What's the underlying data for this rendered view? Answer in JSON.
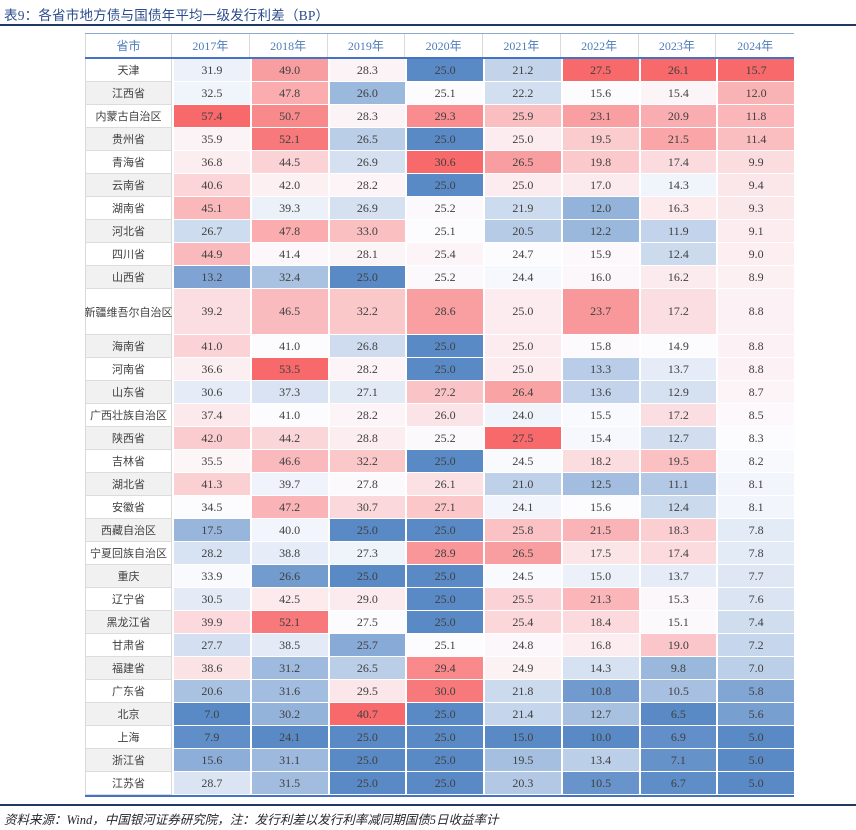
{
  "title": "表9：各省市地方债与国债年平均一级发行利差（BP）",
  "source_note": "资料来源：Wind，中国银河证券研究院，注：发行利差以发行利率减同期国债5日收益率计",
  "colors": {
    "title_text": "#2B4C8E",
    "header_text": "#4E7CB8",
    "rule_navy": "#1F3864",
    "table_border_blue": "#4472C4",
    "cell_text": "#3F3F3F",
    "label_alt_bg": "#F1F1F1",
    "grid_gray": "#D9D9D9",
    "scale_min_blue": "#5A8AC6",
    "scale_mid_white": "#FCFCFF",
    "scale_max_red": "#F8696B"
  },
  "chart_data": {
    "type": "heatmap",
    "title": "表9：各省市地方债与国债年平均一级发行利差（BP）",
    "unit": "BP",
    "label_column": "省市",
    "columns": [
      "2017年",
      "2018年",
      "2019年",
      "2020年",
      "2021年",
      "2022年",
      "2023年",
      "2024年"
    ],
    "color_scale": {
      "mode": "per-column, midpoint at column median",
      "min_color": "#5A8AC6",
      "mid_color": "#FCFCFF",
      "max_color": "#F8696B"
    },
    "rows": [
      {
        "label": "天津",
        "values": [
          31.9,
          49.0,
          28.3,
          25.0,
          21.2,
          27.5,
          26.1,
          15.7
        ]
      },
      {
        "label": "江西省",
        "values": [
          32.5,
          47.8,
          26.0,
          25.1,
          22.2,
          15.6,
          15.4,
          12.0
        ]
      },
      {
        "label": "内蒙古自治区",
        "values": [
          57.4,
          50.7,
          28.3,
          29.3,
          25.9,
          23.1,
          20.9,
          11.8
        ]
      },
      {
        "label": "贵州省",
        "values": [
          35.9,
          52.1,
          26.5,
          25.0,
          25.0,
          19.5,
          21.5,
          11.4
        ]
      },
      {
        "label": "青海省",
        "values": [
          36.8,
          44.5,
          26.9,
          30.6,
          26.5,
          19.8,
          17.4,
          9.9
        ]
      },
      {
        "label": "云南省",
        "values": [
          40.6,
          42.0,
          28.2,
          25.0,
          25.0,
          17.0,
          14.3,
          9.4
        ]
      },
      {
        "label": "湖南省",
        "values": [
          45.1,
          39.3,
          26.9,
          25.2,
          21.9,
          12.0,
          16.3,
          9.3
        ]
      },
      {
        "label": "河北省",
        "values": [
          26.7,
          47.8,
          33.0,
          25.1,
          20.5,
          12.2,
          11.9,
          9.1
        ]
      },
      {
        "label": "四川省",
        "values": [
          44.9,
          41.4,
          28.1,
          25.4,
          24.7,
          15.9,
          12.4,
          9.0
        ]
      },
      {
        "label": "山西省",
        "values": [
          13.2,
          32.4,
          25.0,
          25.2,
          24.4,
          16.0,
          16.2,
          8.9
        ]
      },
      {
        "label": "新疆维吾尔自治区",
        "values": [
          39.2,
          46.5,
          32.2,
          28.6,
          25.0,
          23.7,
          17.2,
          8.8
        ],
        "tall": true
      },
      {
        "label": "海南省",
        "values": [
          41.0,
          41.0,
          26.8,
          25.0,
          25.0,
          15.8,
          14.9,
          8.8
        ]
      },
      {
        "label": "河南省",
        "values": [
          36.6,
          53.5,
          28.2,
          25.0,
          25.0,
          13.3,
          13.7,
          8.8
        ]
      },
      {
        "label": "山东省",
        "values": [
          30.6,
          37.3,
          27.1,
          27.2,
          26.4,
          13.6,
          12.9,
          8.7
        ]
      },
      {
        "label": "广西壮族自治区",
        "values": [
          37.4,
          41.0,
          28.2,
          26.0,
          24.0,
          15.5,
          17.2,
          8.5
        ]
      },
      {
        "label": "陕西省",
        "values": [
          42.0,
          44.2,
          28.8,
          25.2,
          27.5,
          15.4,
          12.7,
          8.3
        ]
      },
      {
        "label": "吉林省",
        "values": [
          35.5,
          46.6,
          32.2,
          25.0,
          24.5,
          18.2,
          19.5,
          8.2
        ]
      },
      {
        "label": "湖北省",
        "values": [
          41.3,
          39.7,
          27.8,
          26.1,
          21.0,
          12.5,
          11.1,
          8.1
        ]
      },
      {
        "label": "安徽省",
        "values": [
          34.5,
          47.2,
          30.7,
          27.1,
          24.1,
          15.6,
          12.4,
          8.1
        ]
      },
      {
        "label": "西藏自治区",
        "values": [
          17.5,
          40.0,
          25.0,
          25.0,
          25.8,
          21.5,
          18.3,
          7.8
        ]
      },
      {
        "label": "宁夏回族自治区",
        "values": [
          28.2,
          38.8,
          27.3,
          28.9,
          26.5,
          17.5,
          17.4,
          7.8
        ]
      },
      {
        "label": "重庆",
        "values": [
          33.9,
          26.6,
          25.0,
          25.0,
          24.5,
          15.0,
          13.7,
          7.7
        ]
      },
      {
        "label": "辽宁省",
        "values": [
          30.5,
          42.5,
          29.0,
          25.0,
          25.5,
          21.3,
          15.3,
          7.6
        ]
      },
      {
        "label": "黑龙江省",
        "values": [
          39.9,
          52.1,
          27.5,
          25.0,
          25.4,
          18.4,
          15.1,
          7.4
        ]
      },
      {
        "label": "甘肃省",
        "values": [
          27.7,
          38.5,
          25.7,
          25.1,
          24.8,
          16.8,
          19.0,
          7.2
        ]
      },
      {
        "label": "福建省",
        "values": [
          38.6,
          31.2,
          26.5,
          29.4,
          24.9,
          14.3,
          9.8,
          7.0
        ]
      },
      {
        "label": "广东省",
        "values": [
          20.6,
          31.6,
          29.5,
          30.0,
          21.8,
          10.8,
          10.5,
          5.8
        ]
      },
      {
        "label": "北京",
        "values": [
          7.0,
          30.2,
          40.7,
          25.0,
          21.4,
          12.7,
          6.5,
          5.6
        ]
      },
      {
        "label": "上海",
        "values": [
          7.9,
          24.1,
          25.0,
          25.0,
          15.0,
          10.0,
          6.9,
          5.0
        ]
      },
      {
        "label": "浙江省",
        "values": [
          15.6,
          31.1,
          25.0,
          25.0,
          19.5,
          13.4,
          7.1,
          5.0
        ]
      },
      {
        "label": "江苏省",
        "values": [
          28.7,
          31.5,
          25.0,
          25.0,
          20.3,
          10.5,
          6.7,
          5.0
        ]
      }
    ]
  }
}
